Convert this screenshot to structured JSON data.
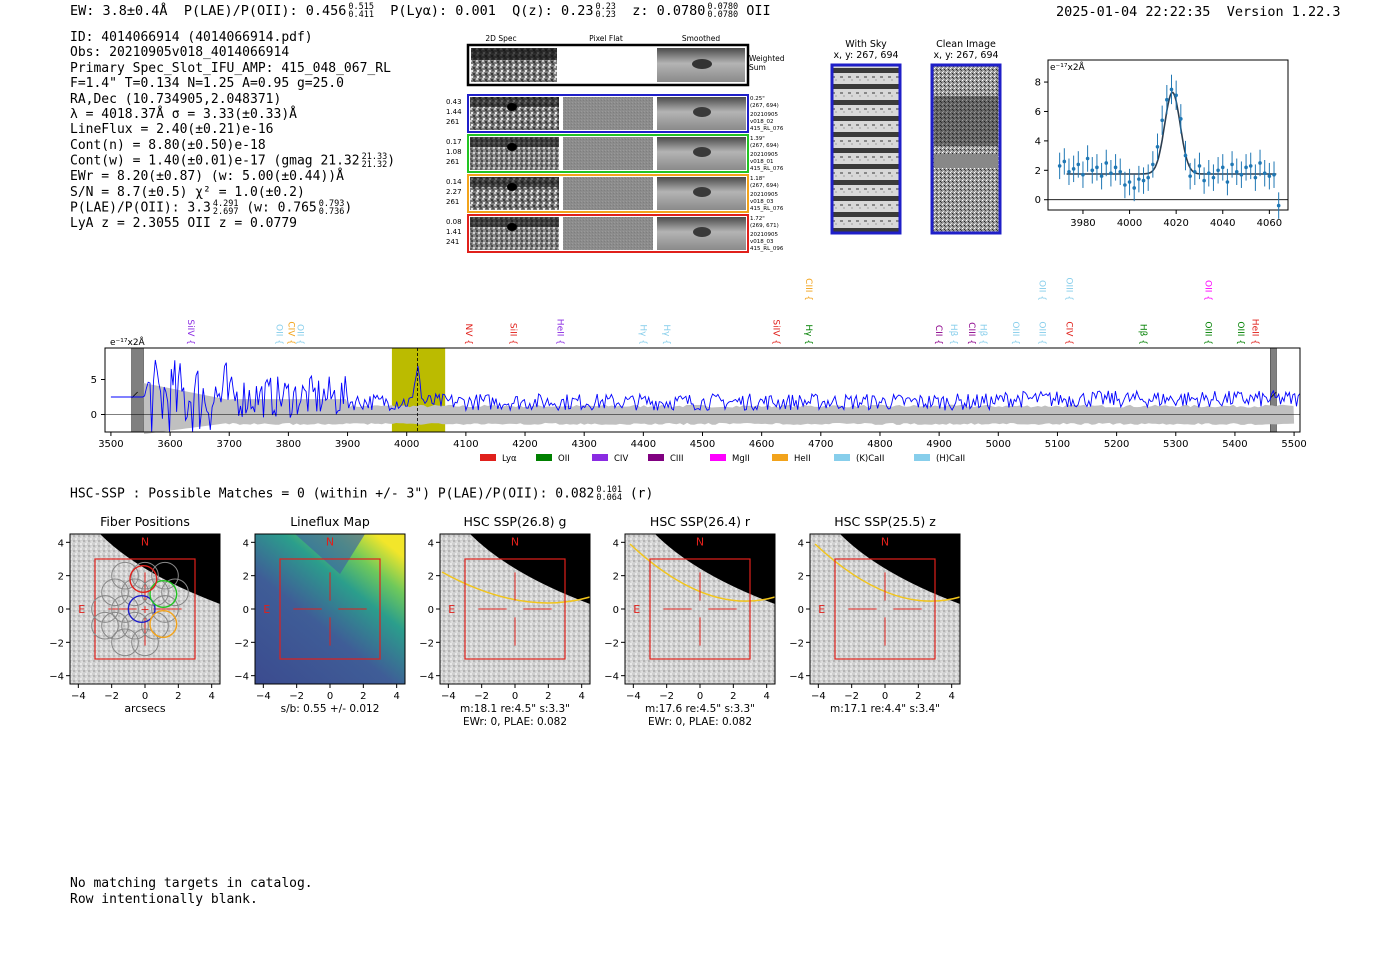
{
  "header": {
    "ew": "EW: 3.8±0.4Å",
    "plae_label": "P(LAE)/P(OII): 0.456",
    "plae_hi": "0.515",
    "plae_lo": "0.411",
    "plya": "P(Lyα): 0.001",
    "qz_label": "Q(z): 0.23",
    "qz_hi": "0.23",
    "qz_lo": "0.23",
    "z_label": "z: 0.0780",
    "z_hi": "0.0780",
    "z_lo": "0.0780",
    "z_line": "OII",
    "datetime": "2025-01-04 22:22:35",
    "version": "Version 1.22.3"
  },
  "info": {
    "id": "ID: 4014066914 (4014066914.pdf)",
    "obs": "Obs: 20210905v018_4014066914",
    "primary": "Primary Spec_Slot_IFU_AMP: 415_048_067_RL",
    "params": "F=1.4\"  T=0.134  N=1.25  A=0.95  g=25.0",
    "radec": "RA,Dec (10.734905,2.048371)",
    "lambda": "λ = 4018.37Å  σ = 3.33(±0.33)Å",
    "lineflux": "LineFlux = 2.40(±0.21)e-16",
    "contn": "Cont(n) = 8.80(±0.50)e-18",
    "contw": "Cont(w) = 1.40(±0.01)e-17 (gmag 21.32",
    "contw_hi": "21.33",
    "contw_lo": "21.32",
    "contw_close": ")",
    "ewr": "EWr = 8.20(±0.87) (w: 5.00(±0.44))Å",
    "sn": "S/N = 8.7(±0.5)  χ² = 1.0(±0.2)",
    "plae": "P(LAE)/P(OII): 3.3",
    "plae_hi": "4.291",
    "plae_lo": "2.697",
    "plae_w": "(w: 0.765",
    "plae_w_hi": "0.793",
    "plae_w_lo": "0.736",
    "plae_w_close": ")",
    "z_line": "LyA z = 2.3055  OII z = 0.0779"
  },
  "cutouts": {
    "col_2d": "2D Spec",
    "col_flat": "Pixel Flat",
    "col_smooth": "Smoothed",
    "weighted": "Weighted",
    "sum": "Sum",
    "rows": [
      {
        "v1": "0.43",
        "v2": "1.44",
        "v3": "261",
        "r1": "0.25\"",
        "r2": "(267, 694)",
        "r3": "20210905",
        "r4": "v018_02",
        "r5": "415_RL_076",
        "color": "#1f1fc8"
      },
      {
        "v1": "0.17",
        "v2": "1.08",
        "v3": "261",
        "r1": "1.39\"",
        "r2": "(267, 694)",
        "r3": "20210905",
        "r4": "v018_01",
        "r5": "415_RL_076",
        "color": "#22c322"
      },
      {
        "v1": "0.14",
        "v2": "2.27",
        "v3": "261",
        "r1": "1.18\"",
        "r2": "(267, 694)",
        "r3": "20210905",
        "r4": "v018_03",
        "r5": "415_RL_076",
        "color": "#f2a31b"
      },
      {
        "v1": "0.08",
        "v2": "1.41",
        "v3": "241",
        "r1": "1.72\"",
        "r2": "(269, 671)",
        "r3": "20210905",
        "r4": "v018_03",
        "r5": "415_RL_096",
        "color": "#e0201b"
      }
    ]
  },
  "sky": {
    "with_sky": "With Sky",
    "with_sky_xy": "x, y: 267, 694",
    "clean": "Clean Image",
    "clean_xy": "x, y: 267, 694"
  },
  "colors": {
    "spectrum": "#0000ff",
    "fit": "#1f77b4",
    "band": "#bbbb00",
    "noise": "#c0c0c0",
    "red": "#e0201b",
    "blue": "#1f1fc8",
    "green": "#22c322",
    "orange": "#f2a31b"
  },
  "chart_data": [
    {
      "type": "scatter",
      "name": "line-fit-zoom",
      "title": "",
      "ylabel": "e⁻¹⁷x2Å",
      "xlim": [
        3965,
        4068
      ],
      "ylim": [
        -0.7,
        9.5
      ],
      "xticks": [
        3980,
        4000,
        4020,
        4040,
        4060
      ],
      "yticks": [
        0,
        2,
        4,
        6,
        8
      ],
      "x": [
        3970,
        3972,
        3974,
        3976,
        3978,
        3980,
        3982,
        3984,
        3986,
        3988,
        3990,
        3992,
        3994,
        3996,
        3998,
        4000,
        4002,
        4004,
        4006,
        4008,
        4010,
        4012,
        4014,
        4016,
        4018,
        4020,
        4022,
        4024,
        4026,
        4028,
        4030,
        4032,
        4034,
        4036,
        4038,
        4040,
        4042,
        4044,
        4046,
        4048,
        4050,
        4052,
        4054,
        4056,
        4058,
        4060,
        4062,
        4064
      ],
      "y": [
        2.3,
        2.6,
        1.9,
        2.1,
        2.4,
        1.7,
        2.8,
        2.0,
        2.2,
        1.6,
        2.5,
        1.8,
        2.2,
        1.9,
        1.0,
        1.2,
        0.8,
        1.4,
        1.3,
        1.5,
        2.4,
        3.6,
        5.4,
        6.8,
        7.5,
        7.1,
        5.5,
        3.0,
        1.6,
        1.9,
        2.3,
        1.3,
        1.8,
        1.5,
        2.0,
        2.2,
        1.2,
        2.4,
        1.9,
        1.7,
        2.2,
        2.3,
        1.5,
        2.5,
        1.8,
        1.6,
        1.7,
        -0.4
      ],
      "yerr": [
        0.9,
        0.9,
        0.9,
        0.9,
        0.9,
        0.9,
        0.9,
        0.9,
        0.9,
        0.9,
        0.9,
        0.9,
        0.9,
        0.9,
        0.9,
        0.9,
        0.9,
        0.9,
        0.9,
        0.9,
        0.9,
        0.9,
        1.0,
        1.0,
        1.0,
        1.0,
        1.0,
        1.0,
        0.9,
        0.9,
        0.9,
        0.9,
        0.9,
        0.9,
        0.9,
        0.9,
        0.9,
        0.9,
        0.9,
        0.9,
        0.9,
        0.9,
        0.9,
        0.9,
        0.9,
        0.9,
        0.9,
        0.9
      ],
      "fit": {
        "continuum": 1.75,
        "amplitude": 5.55,
        "center": 4018.4,
        "sigma": 3.33,
        "xrange": [
          3973,
          4063
        ]
      }
    },
    {
      "type": "line",
      "name": "full-spectrum",
      "ylabel": "e⁻¹⁷x2Å",
      "xlim": [
        3490,
        5510
      ],
      "ylim": [
        -2.5,
        9.5
      ],
      "xticks": [
        3500,
        3600,
        3700,
        3800,
        3900,
        4000,
        4100,
        4200,
        4300,
        4400,
        4500,
        4600,
        4700,
        4800,
        4900,
        5000,
        5100,
        5200,
        5300,
        5400,
        5500
      ],
      "yticks": [
        0,
        5
      ],
      "emission_line": 4018.37,
      "highlight_band": [
        3975,
        4065
      ],
      "masked_bands": [
        [
          3535,
          3555
        ],
        [
          5460,
          5470
        ]
      ],
      "line_labels": [
        {
          "text": "SiIV",
          "x": 3625,
          "color": "#8a2be2",
          "row": 1
        },
        {
          "text": "OII",
          "x": 3775,
          "color": "#87ceeb",
          "row": 1
        },
        {
          "text": "CIV",
          "x": 3795,
          "color": "#f2a31b",
          "row": 1
        },
        {
          "text": "OII",
          "x": 3810,
          "color": "#87ceeb",
          "row": 1
        },
        {
          "text": "NV",
          "x": 4095,
          "color": "#e0201b",
          "row": 1
        },
        {
          "text": "SiII",
          "x": 4170,
          "color": "#e0201b",
          "row": 1
        },
        {
          "text": "HeII",
          "x": 4250,
          "color": "#8a2be2",
          "row": 1
        },
        {
          "text": "Hγ",
          "x": 4390,
          "color": "#87ceeb",
          "row": 1
        },
        {
          "text": "Hγ",
          "x": 4430,
          "color": "#87ceeb",
          "row": 1
        },
        {
          "text": "SiIV",
          "x": 4615,
          "color": "#e0201b",
          "row": 1
        },
        {
          "text": "Hγ",
          "x": 4670,
          "color": "#008000",
          "row": 1
        },
        {
          "text": "CIII",
          "x": 4670,
          "color": "#f2a31b",
          "row": 3
        },
        {
          "text": "CII",
          "x": 4890,
          "color": "#8b008b",
          "row": 1
        },
        {
          "text": "Hβ",
          "x": 4915,
          "color": "#87ceeb",
          "row": 1
        },
        {
          "text": "CIII",
          "x": 4945,
          "color": "#8b008b",
          "row": 1
        },
        {
          "text": "Hβ",
          "x": 4965,
          "color": "#87ceeb",
          "row": 1
        },
        {
          "text": "OIII",
          "x": 5020,
          "color": "#87ceeb",
          "row": 1
        },
        {
          "text": "OIII",
          "x": 5065,
          "color": "#87ceeb",
          "row": 1
        },
        {
          "text": "OII",
          "x": 5065,
          "color": "#87ceeb",
          "row": 3
        },
        {
          "text": "CIV",
          "x": 5110,
          "color": "#e0201b",
          "row": 1
        },
        {
          "text": "OIII",
          "x": 5110,
          "color": "#87ceeb",
          "row": 3
        },
        {
          "text": "Hβ",
          "x": 5235,
          "color": "#008000",
          "row": 1
        },
        {
          "text": "OIII",
          "x": 5345,
          "color": "#008000",
          "row": 1
        },
        {
          "text": "OII",
          "x": 5345,
          "color": "#ff00ff",
          "row": 3
        },
        {
          "text": "OIII",
          "x": 5400,
          "color": "#008000",
          "row": 1
        },
        {
          "text": "HeII",
          "x": 5425,
          "color": "#e0201b",
          "row": 1
        }
      ],
      "legend": [
        {
          "label": "Lyα",
          "color": "#e0201b"
        },
        {
          "label": "OII",
          "color": "#008000"
        },
        {
          "label": "CIV",
          "color": "#8a2be2"
        },
        {
          "label": "CIII",
          "color": "#800080"
        },
        {
          "label": "MgII",
          "color": "#ff00ff"
        },
        {
          "label": "HeII",
          "color": "#f2a31b"
        },
        {
          "label": "(K)CaII",
          "color": "#87ceeb"
        },
        {
          "label": "(H)CaII",
          "color": "#87ceeb"
        }
      ]
    },
    {
      "type": "heatmap",
      "name": "imaging-panels",
      "xlim": [
        -4.5,
        4.5
      ],
      "ylim": [
        -4.5,
        4.5
      ],
      "xticks": [
        -4,
        -2,
        0,
        2,
        4
      ],
      "yticks": [
        -4,
        -2,
        0,
        2,
        4
      ],
      "panels": [
        {
          "title": "Fiber Positions",
          "xlabel": "arcsecs",
          "sub1": "",
          "sub2": ""
        },
        {
          "title": "Lineflux Map",
          "xlabel": "",
          "sub1": "s/b: 0.55 +/- 0.012",
          "sub2": ""
        },
        {
          "title": "HSC SSP(26.8) g",
          "xlabel": "",
          "sub1": "m:18.1  re:4.5\"  s:3.3\"",
          "sub2": "EWr: 0, PLAE: 0.082"
        },
        {
          "title": "HSC SSP(26.4) r",
          "xlabel": "",
          "sub1": "m:17.6  re:4.5\"  s:3.3\"",
          "sub2": "EWr: 0, PLAE: 0.082"
        },
        {
          "title": "HSC SSP(25.5) z",
          "xlabel": "",
          "sub1": "m:17.1  re:4.4\"  s:3.4\"",
          "sub2": ""
        }
      ],
      "compass_n": "N",
      "compass_e": "E"
    }
  ],
  "hsc": {
    "text": "HSC-SSP : Possible Matches = 0 (within +/- 3\")  P(LAE)/P(OII): 0.082",
    "hi": "0.101",
    "lo": "0.064",
    "band": "(r)"
  },
  "footer": {
    "line1": "No matching targets in catalog.",
    "line2": "Row intentionally blank."
  }
}
